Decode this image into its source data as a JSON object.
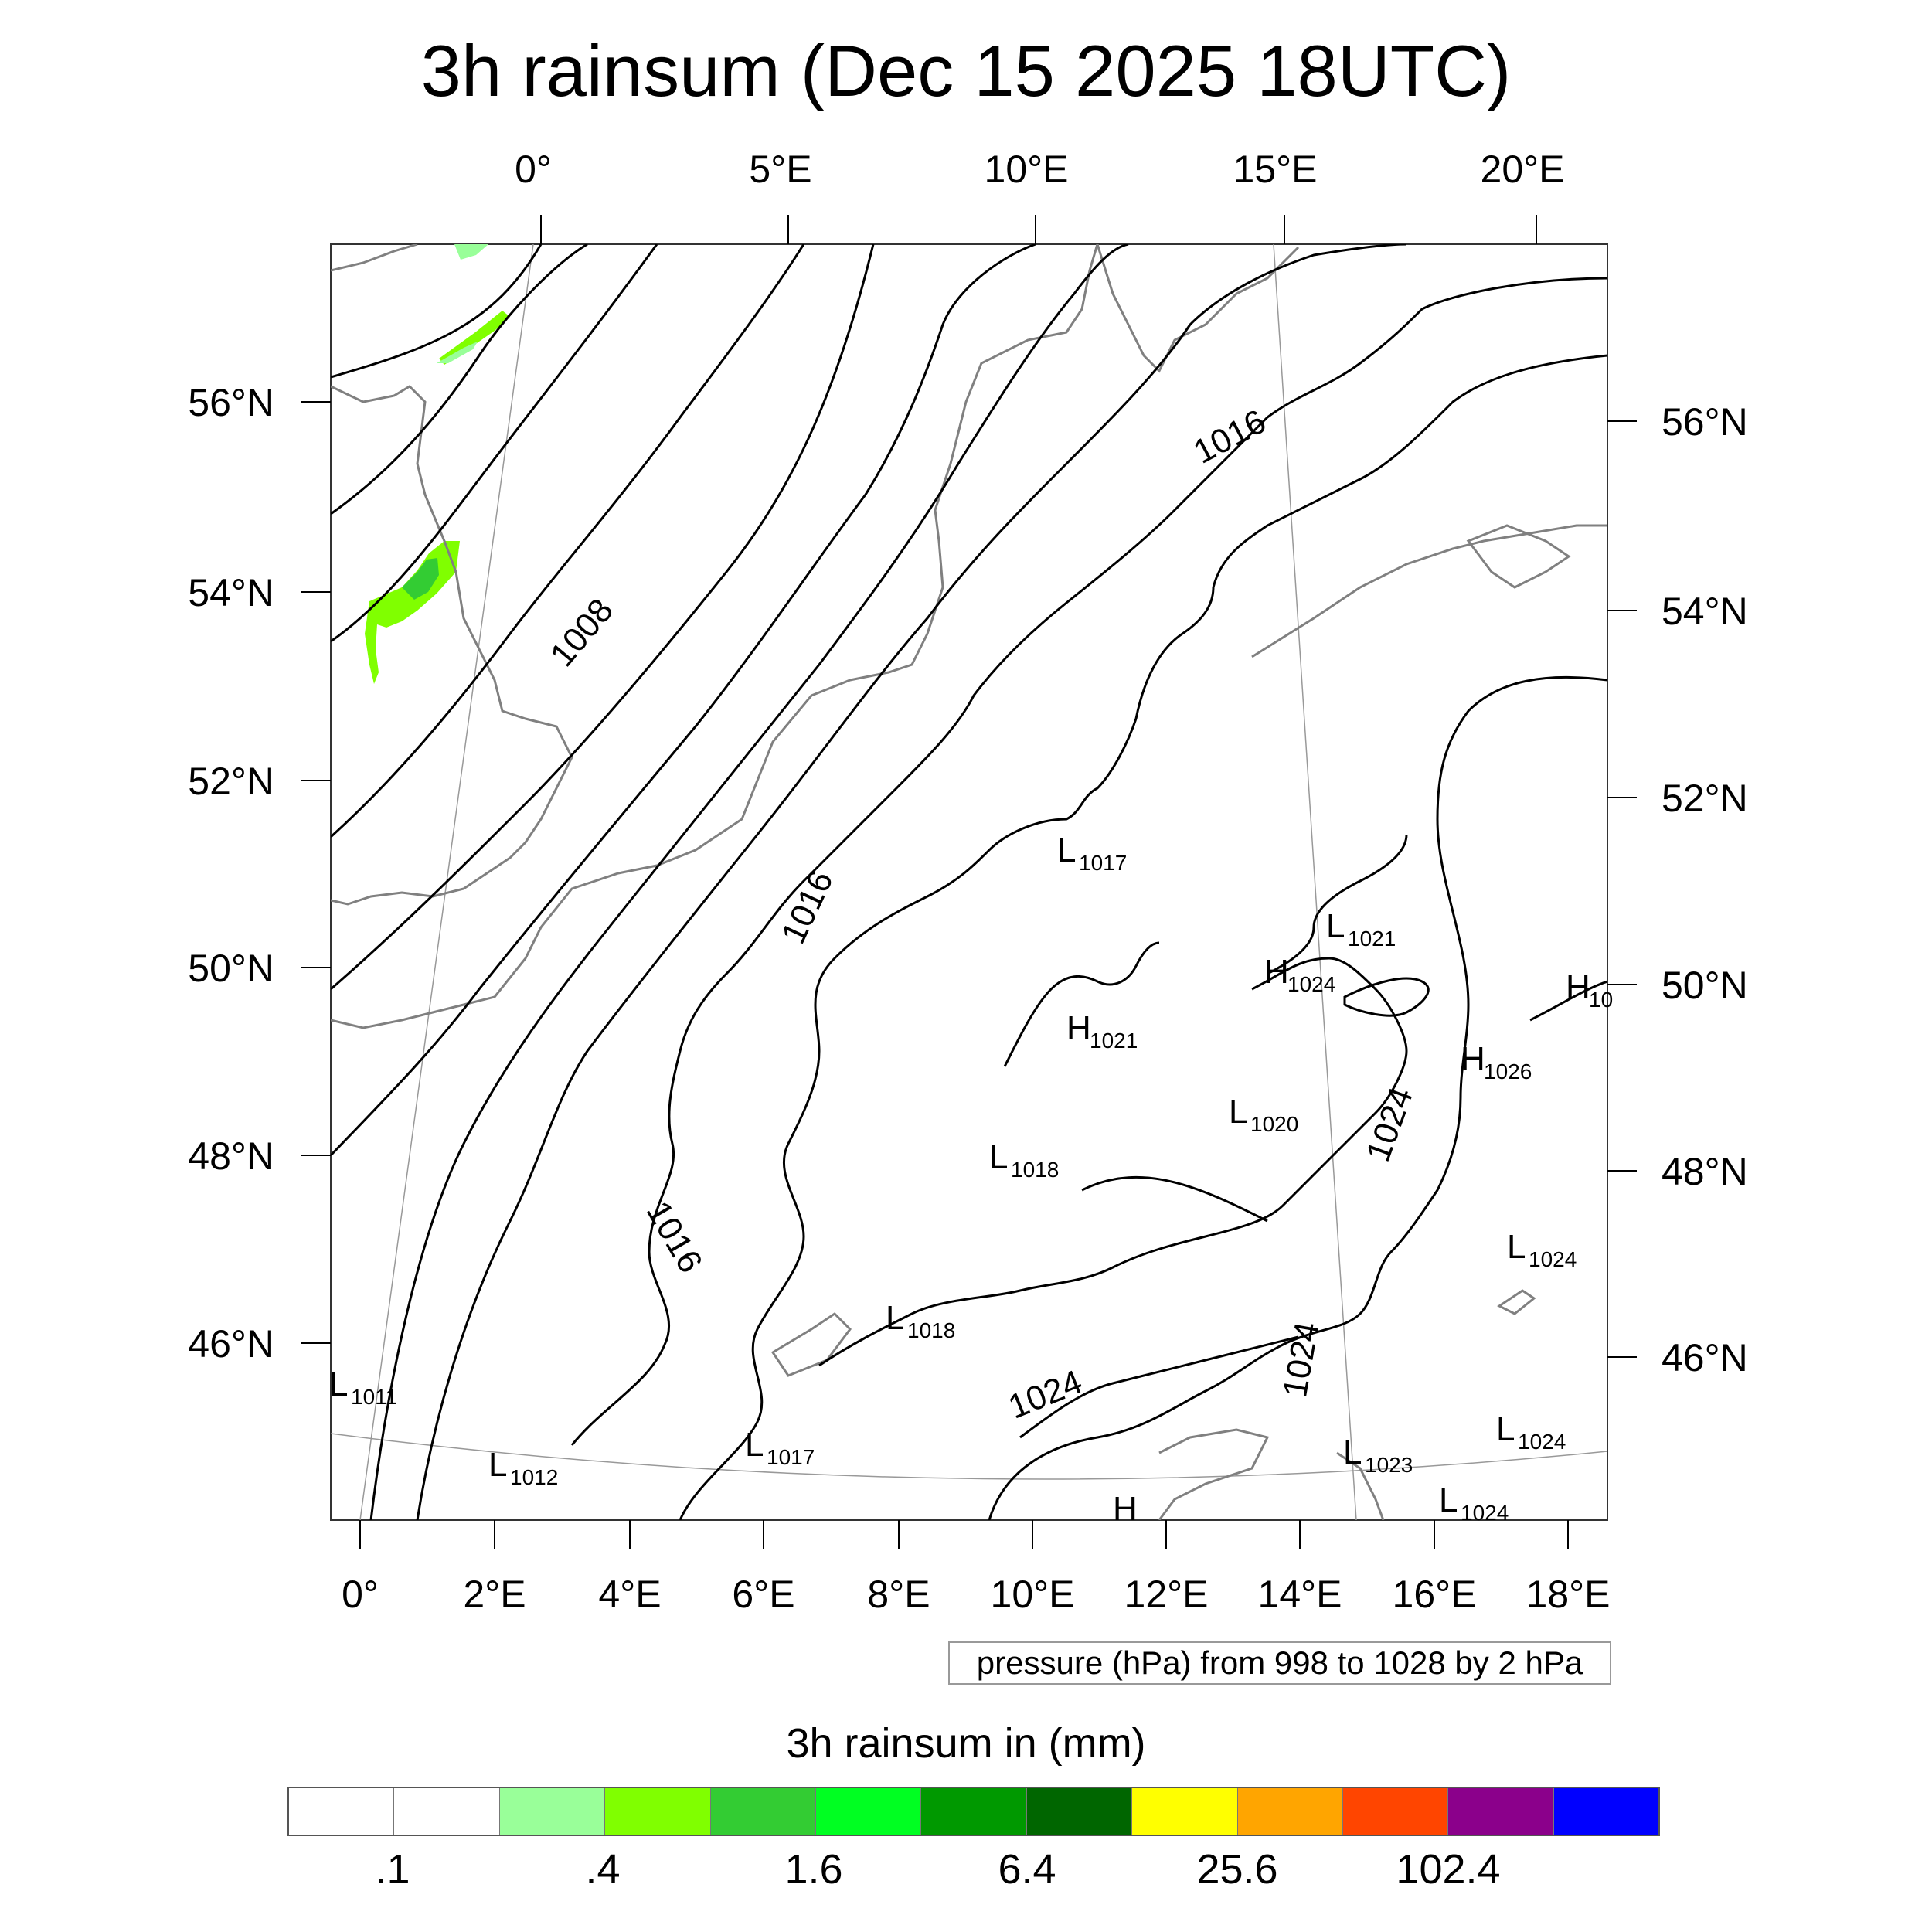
{
  "title": "3h rainsum (Dec 15 2025 18UTC)",
  "top_lon_labels": [
    "0°",
    "5°E",
    "10°E",
    "15°E",
    "20°E"
  ],
  "bottom_lon_labels": [
    "0°",
    "2°E",
    "4°E",
    "6°E",
    "8°E",
    "10°E",
    "12°E",
    "14°E",
    "16°E",
    "18°E"
  ],
  "left_lat_labels": [
    "56°N",
    "54°N",
    "52°N",
    "50°N",
    "48°N",
    "46°N"
  ],
  "right_lat_labels": [
    "56°N",
    "54°N",
    "52°N",
    "50°N",
    "48°N",
    "46°N"
  ],
  "contour_labels": [
    "1008",
    "1016",
    "1016",
    "1016",
    "1024",
    "1024",
    "1024"
  ],
  "pressure_centers": [
    {
      "letter": "L",
      "value": "1017"
    },
    {
      "letter": "L",
      "value": "1021"
    },
    {
      "letter": "H",
      "value": "1024"
    },
    {
      "letter": "H",
      "value": "10"
    },
    {
      "letter": "H",
      "value": "1021"
    },
    {
      "letter": "H",
      "value": "1026"
    },
    {
      "letter": "L",
      "value": "1020"
    },
    {
      "letter": "L",
      "value": "1018"
    },
    {
      "letter": "L",
      "value": "1024"
    },
    {
      "letter": "L",
      "value": "1018"
    },
    {
      "letter": "L",
      "value": "1011"
    },
    {
      "letter": "L",
      "value": "1012"
    },
    {
      "letter": "L",
      "value": "1017"
    },
    {
      "letter": "L",
      "value": "1023"
    },
    {
      "letter": "L",
      "value": "1024"
    },
    {
      "letter": "L",
      "value": "1024"
    },
    {
      "letter": "H",
      "value": ""
    }
  ],
  "info_text": "pressure (hPa) from 998 to 1028 by 2 hPa",
  "colorbar": {
    "title": "3h rainsum in (mm)",
    "colors": [
      "#ffffff",
      "#ffffff",
      "#99ff99",
      "#80ff00",
      "#33cc33",
      "#00ff22",
      "#009900",
      "#006600",
      "#ffff00",
      "#ffa500",
      "#ff4500",
      "#8b008b",
      "#0000ff"
    ],
    "labels": [
      ".1",
      ".4",
      "1.6",
      "6.4",
      "25.6",
      "102.4"
    ]
  },
  "colors": {
    "contour": "#000000",
    "coast": "#808080",
    "rain_light": "#99ff99",
    "rain_mid": "#80ff00",
    "rain_heavy": "#33cc33"
  }
}
